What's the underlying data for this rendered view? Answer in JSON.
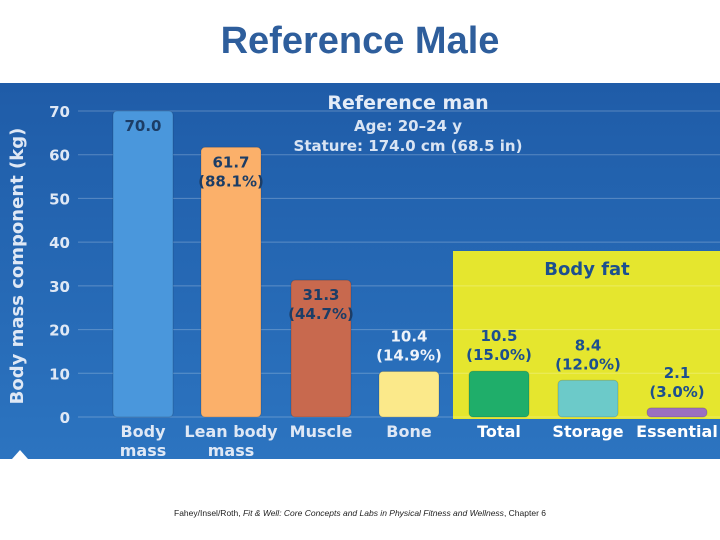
{
  "slide": {
    "title": "Reference Male",
    "footer_prefix": "Fahey/Insel/Roth, ",
    "footer_book": "Fit & Well: Core Concepts and Labs in Physical Fitness and Wellness",
    "footer_suffix": ", Chapter 6"
  },
  "colors": {
    "background_top": "#1f5ca8",
    "background_bottom": "#2c74c0",
    "body_fat_panel": "#e5e62e",
    "body_mass_bar": "#4a97dc",
    "lean_body_mass_bar": "#fbb06a",
    "muscle_bar": "#c8694e",
    "bone_bar": "#fbe98a",
    "total_bar": "#1fae6a",
    "storage_bar": "#6ccac9",
    "essential_bar": "#9b6fc0"
  },
  "chart_data": {
    "type": "bar",
    "title": "Reference man",
    "subtitle_lines": [
      "Age: 20–24 y",
      "Stature: 174.0 cm (68.5 in)"
    ],
    "ylabel": "Body mass component (kg)",
    "ylim": [
      0,
      70
    ],
    "yticks": [
      "0",
      "10",
      "20",
      "30",
      "40",
      "50",
      "60",
      "70"
    ],
    "panel_label": "Body fat",
    "categories": [
      "Body mass",
      "Lean body mass",
      "Muscle",
      "Bone",
      "Total",
      "Storage",
      "Essential"
    ],
    "category_lines": [
      [
        "Body",
        "mass"
      ],
      [
        "Lean body",
        "mass"
      ],
      [
        "Muscle"
      ],
      [
        "Bone"
      ],
      [
        "Total"
      ],
      [
        "Storage"
      ],
      [
        "Essential"
      ]
    ],
    "values": [
      70.0,
      61.7,
      31.3,
      10.4,
      10.5,
      8.4,
      2.1
    ],
    "value_labels": [
      "70.0",
      "61.7",
      "31.3",
      "10.4",
      "10.5",
      "8.4",
      "2.1"
    ],
    "percent_labels": [
      "",
      "(88.1%)",
      "(44.7%)",
      "(14.9%)",
      "(15.0%)",
      "(12.0%)",
      "(3.0%)"
    ],
    "body_fat_categories": [
      "Total",
      "Storage",
      "Essential"
    ]
  }
}
